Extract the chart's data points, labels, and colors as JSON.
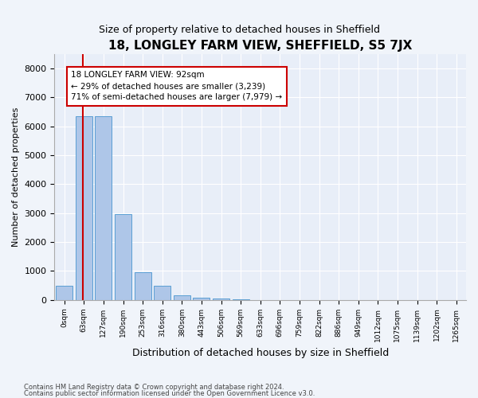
{
  "title": "18, LONGLEY FARM VIEW, SHEFFIELD, S5 7JX",
  "subtitle": "Size of property relative to detached houses in Sheffield",
  "xlabel": "Distribution of detached houses by size in Sheffield",
  "ylabel": "Number of detached properties",
  "bin_labels": [
    "0sqm",
    "63sqm",
    "127sqm",
    "190sqm",
    "253sqm",
    "316sqm",
    "380sqm",
    "443sqm",
    "506sqm",
    "569sqm",
    "633sqm",
    "696sqm",
    "759sqm",
    "822sqm",
    "886sqm",
    "949sqm",
    "1012sqm",
    "1075sqm",
    "1139sqm",
    "1202sqm",
    "1265sqm"
  ],
  "bar_values": [
    500,
    6350,
    6350,
    2950,
    950,
    480,
    160,
    80,
    50,
    10,
    0,
    0,
    0,
    0,
    0,
    0,
    0,
    0,
    0,
    0,
    0
  ],
  "bar_color": "#aec6e8",
  "bar_edgecolor": "#5a9fd4",
  "property_sqm": 92,
  "property_label": "18 LONGLEY FARM VIEW: 92sqm",
  "annotation_line1": "← 29% of detached houses are smaller (3,239)",
  "annotation_line2": "71% of semi-detached houses are larger (7,979) →",
  "vline_color": "#cc0000",
  "ylim": [
    0,
    8500
  ],
  "yticks": [
    0,
    1000,
    2000,
    3000,
    4000,
    5000,
    6000,
    7000,
    8000
  ],
  "footer_line1": "Contains HM Land Registry data © Crown copyright and database right 2024.",
  "footer_line2": "Contains public sector information licensed under the Open Government Licence v3.0.",
  "bg_color": "#f0f4fa",
  "plot_bg_color": "#e8eef8"
}
